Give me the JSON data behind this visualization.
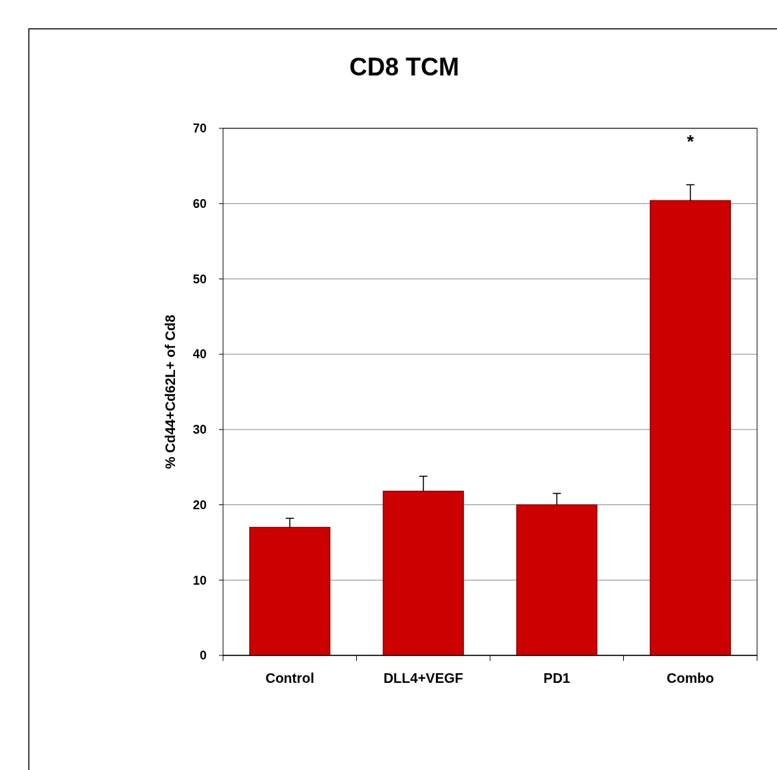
{
  "chart_data": {
    "type": "bar",
    "title": "CD8 TCM",
    "ylabel": "% Cd44+Cd62L+ of Cd8",
    "categories": [
      "Control",
      "DLL4+VEGF",
      "PD1",
      "Combo"
    ],
    "values": [
      17,
      21.8,
      20,
      60.4
    ],
    "errors": [
      [
        17,
        18.2
      ],
      [
        21.8,
        23.8
      ],
      [
        20,
        21.5
      ],
      [
        60.4,
        62.5
      ]
    ],
    "color": "#cc0000",
    "ylim": [
      0,
      70
    ],
    "yticks": [
      0,
      10,
      20,
      30,
      40,
      50,
      60,
      70
    ],
    "grid": "y",
    "annotations": [
      "*"
    ]
  }
}
